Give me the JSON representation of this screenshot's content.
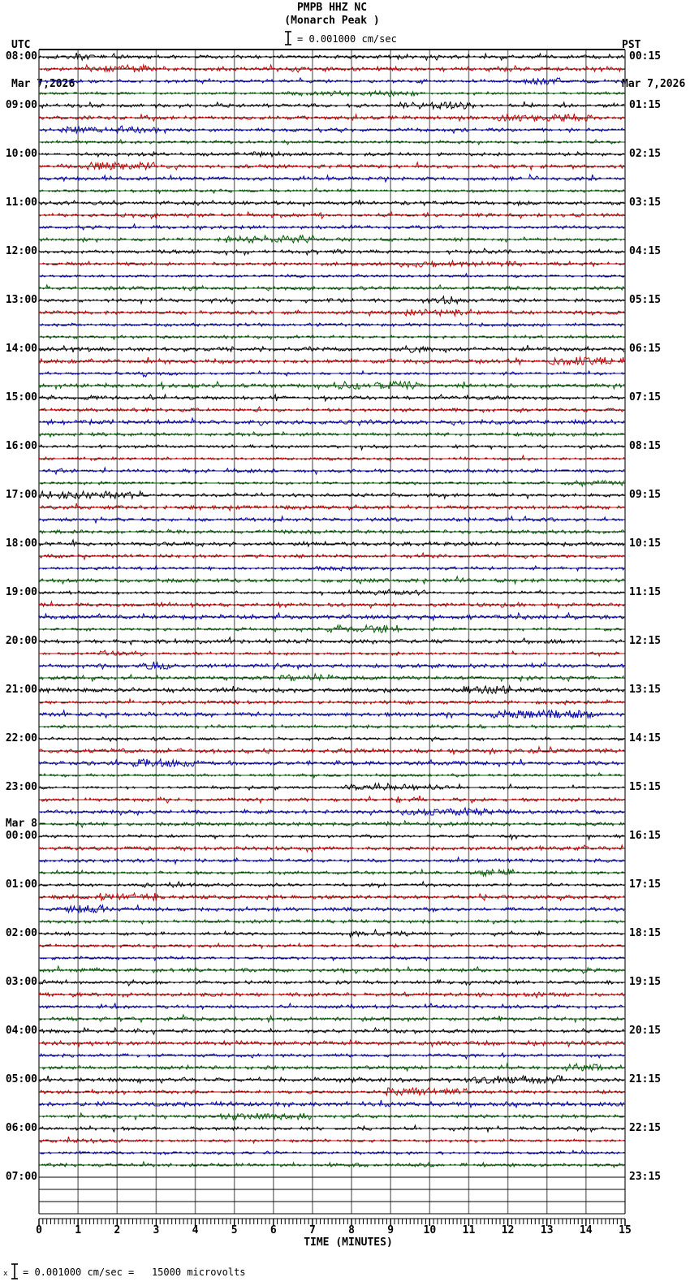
{
  "header": {
    "left_tz": "UTC",
    "left_date": "Mar 7,2026",
    "right_tz": "PST",
    "right_date": "Mar 7,2026"
  },
  "title": {
    "station_line": "PMPB HHZ NC",
    "location_line": "(Monarch Peak )",
    "scale_label": "= 0.001000 cm/sec"
  },
  "axis": {
    "title": "TIME (MINUTES)",
    "tick_labels": [
      "0",
      "1",
      "2",
      "3",
      "4",
      "5",
      "6",
      "7",
      "8",
      "9",
      "10",
      "11",
      "12",
      "13",
      "14",
      "15"
    ]
  },
  "footer": {
    "subscript_glyph": "x",
    "scale_label": "= 0.001000 cm/sec =   15000 microvolts"
  },
  "chart_data": {
    "type": "line",
    "variant": "helicorder-seismogram",
    "station": "PMPB",
    "channel": "HHZ",
    "network": "NC",
    "station_name": "Monarch Peak",
    "title": "PMPB HHZ NC (Monarch Peak )",
    "utc_date_start": "Mar 7,2026",
    "local_date_start": "Mar 7,2026",
    "local_timezone": "PST",
    "minutes_per_line": 15,
    "lines_per_hour": 4,
    "xlabel": "TIME (MINUTES)",
    "x_range": [
      0,
      15
    ],
    "x_tick_interval": 1,
    "grid_on": true,
    "gridline_color": "#808080",
    "background_color": "#ffffff",
    "trace_color_cycle": [
      "#000000",
      "#cc0000",
      "#0000bb",
      "#006400"
    ],
    "amplitude_scale": "1 bar = 0.001000 cm/sec = 15000 microvolts",
    "signal_description": "low-amplitude continuous background noise on every recorded line, no large events",
    "recorded_hours": 23,
    "blank_lines_at_end": 4,
    "day_change_index": 16,
    "day_change_label": "Mar 8",
    "hours": [
      {
        "utc": "08:00",
        "pst": "00:15"
      },
      {
        "utc": "09:00",
        "pst": "01:15"
      },
      {
        "utc": "10:00",
        "pst": "02:15"
      },
      {
        "utc": "11:00",
        "pst": "03:15"
      },
      {
        "utc": "12:00",
        "pst": "04:15"
      },
      {
        "utc": "13:00",
        "pst": "05:15"
      },
      {
        "utc": "14:00",
        "pst": "06:15"
      },
      {
        "utc": "15:00",
        "pst": "07:15"
      },
      {
        "utc": "16:00",
        "pst": "08:15"
      },
      {
        "utc": "17:00",
        "pst": "09:15"
      },
      {
        "utc": "18:00",
        "pst": "10:15"
      },
      {
        "utc": "19:00",
        "pst": "11:15"
      },
      {
        "utc": "20:00",
        "pst": "12:15"
      },
      {
        "utc": "21:00",
        "pst": "13:15"
      },
      {
        "utc": "22:00",
        "pst": "14:15"
      },
      {
        "utc": "23:00",
        "pst": "15:15"
      },
      {
        "utc": "00:00",
        "pst": "16:15"
      },
      {
        "utc": "01:00",
        "pst": "17:15"
      },
      {
        "utc": "02:00",
        "pst": "18:15"
      },
      {
        "utc": "03:00",
        "pst": "19:15"
      },
      {
        "utc": "04:00",
        "pst": "20:15"
      },
      {
        "utc": "05:00",
        "pst": "21:15"
      },
      {
        "utc": "06:00",
        "pst": "22:15"
      },
      {
        "utc": "07:00",
        "pst": "23:15"
      }
    ]
  }
}
